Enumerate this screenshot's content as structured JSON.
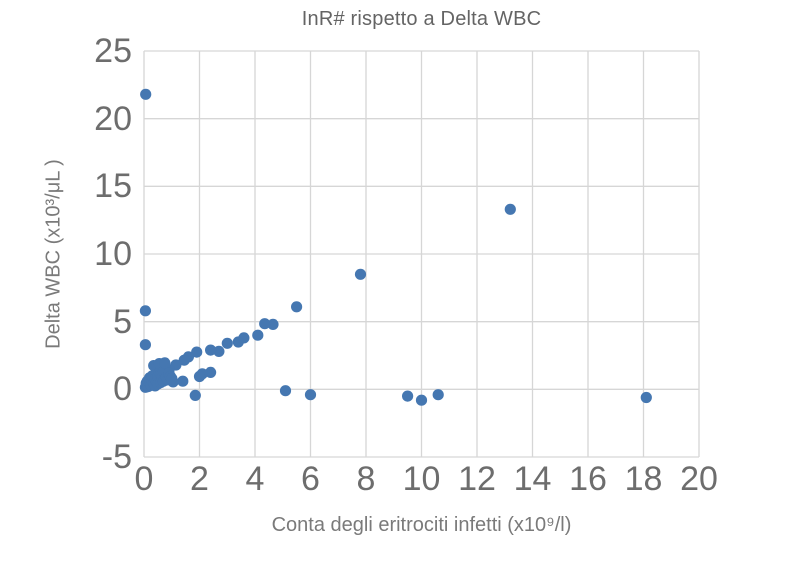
{
  "chart_data": {
    "type": "scatter",
    "title": "InR# rispetto a Delta WBC",
    "xlabel": "Conta degli eritrociti infetti  (x10⁹/l)",
    "ylabel": "Delta WBC (x10³/μL )",
    "xlim": [
      0,
      20
    ],
    "ylim": [
      -5,
      25
    ],
    "xticks": [
      0,
      2,
      4,
      6,
      8,
      10,
      12,
      14,
      16,
      18,
      20
    ],
    "yticks": [
      -5,
      0,
      5,
      10,
      15,
      20,
      25
    ],
    "grid": true,
    "legend": "none",
    "marker_color": "#4577b1",
    "grid_color": "#d6d6d6",
    "points": [
      [
        0.06,
        21.8
      ],
      [
        0.05,
        5.8
      ],
      [
        0.05,
        3.3
      ],
      [
        13.2,
        13.3
      ],
      [
        7.8,
        8.5
      ],
      [
        5.5,
        6.1
      ],
      [
        4.65,
        4.8
      ],
      [
        4.35,
        4.85
      ],
      [
        4.1,
        4.0
      ],
      [
        3.6,
        3.8
      ],
      [
        3.4,
        3.5
      ],
      [
        3.0,
        3.4
      ],
      [
        2.7,
        2.8
      ],
      [
        2.4,
        2.9
      ],
      [
        1.9,
        2.75
      ],
      [
        1.6,
        2.4
      ],
      [
        1.45,
        2.15
      ],
      [
        2.4,
        1.25
      ],
      [
        2.1,
        1.15
      ],
      [
        2.0,
        0.95
      ],
      [
        1.15,
        1.8
      ],
      [
        0.9,
        1.45
      ],
      [
        1.4,
        0.6
      ],
      [
        1.05,
        0.55
      ],
      [
        1.85,
        -0.45
      ],
      [
        5.1,
        -0.1
      ],
      [
        6.0,
        -0.4
      ],
      [
        9.5,
        -0.5
      ],
      [
        10.0,
        -0.8
      ],
      [
        10.6,
        -0.4
      ],
      [
        18.1,
        -0.6
      ],
      [
        0.05,
        0.15
      ],
      [
        0.08,
        0.45
      ],
      [
        0.1,
        0.3
      ],
      [
        0.12,
        0.6
      ],
      [
        0.15,
        0.2
      ],
      [
        0.2,
        0.45
      ],
      [
        0.2,
        0.85
      ],
      [
        0.25,
        0.3
      ],
      [
        0.3,
        0.6
      ],
      [
        0.3,
        1.0
      ],
      [
        0.35,
        0.45
      ],
      [
        0.35,
        1.75
      ],
      [
        0.4,
        0.75
      ],
      [
        0.4,
        0.25
      ],
      [
        0.45,
        0.55
      ],
      [
        0.5,
        0.9
      ],
      [
        0.5,
        0.4
      ],
      [
        0.55,
        1.25
      ],
      [
        0.55,
        1.9
      ],
      [
        0.6,
        0.5
      ],
      [
        0.6,
        1.1
      ],
      [
        0.65,
        0.85
      ],
      [
        0.7,
        0.6
      ],
      [
        0.7,
        1.35
      ],
      [
        0.75,
        1.95
      ],
      [
        0.8,
        0.9
      ],
      [
        0.85,
        0.7
      ],
      [
        0.9,
        1.2
      ],
      [
        0.95,
        0.95
      ],
      [
        1.0,
        0.8
      ]
    ]
  }
}
